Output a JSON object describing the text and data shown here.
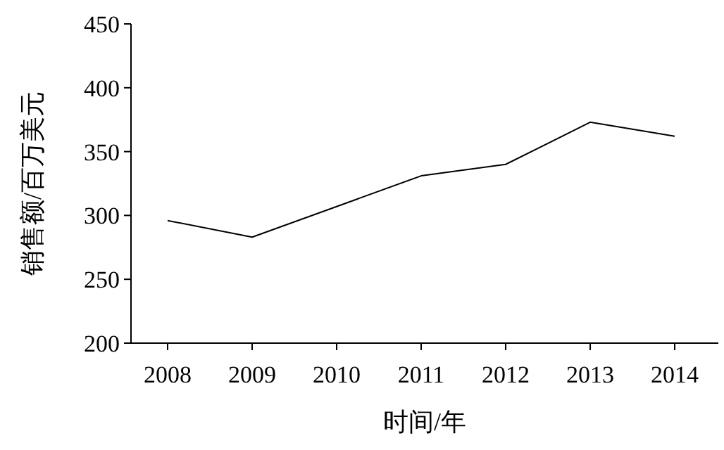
{
  "chart_data": {
    "type": "line",
    "xlabel": "时间/年",
    "ylabel": "销售额/百万美元",
    "categories": [
      "2008",
      "2009",
      "2010",
      "2011",
      "2012",
      "2013",
      "2014"
    ],
    "series": [
      {
        "color": "#000000",
        "values": [
          296,
          283,
          307,
          331,
          340,
          373,
          362
        ]
      }
    ],
    "ylim": [
      200,
      450
    ],
    "yticks": [
      200,
      250,
      300,
      350,
      400,
      450
    ]
  }
}
